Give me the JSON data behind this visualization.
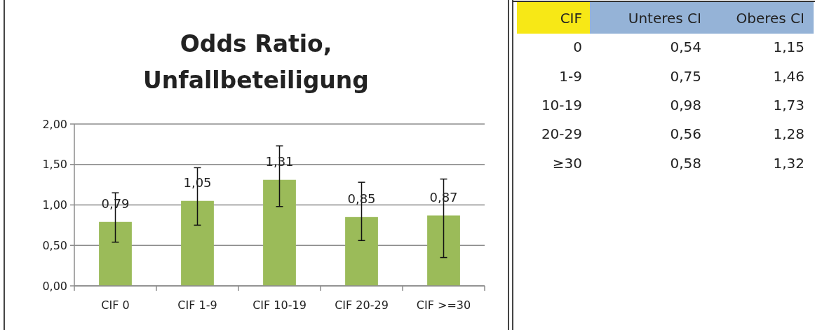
{
  "chart_data": [
    {
      "type": "bar",
      "title": "Odds Ratio,\nUnfallbeteiligung",
      "categories": [
        "CIF 0",
        "CIF 1-9",
        "CIF 10-19",
        "CIF 20-29",
        "CIF >=30"
      ],
      "values": [
        0.79,
        1.05,
        1.31,
        0.85,
        0.87
      ],
      "color": "#9bbb59",
      "errors": [
        [
          0.54,
          1.15
        ],
        [
          0.75,
          1.46
        ],
        [
          0.98,
          1.73
        ],
        [
          0.56,
          1.28
        ],
        [
          0.35,
          1.32
        ]
      ],
      "value_labels": [
        "0,79",
        "1,05",
        "1,31",
        "0,85",
        "0,87"
      ],
      "ylim": [
        0,
        2
      ],
      "yticks": [
        {
          "value": 0,
          "label": "0,00"
        },
        {
          "value": 0.5,
          "label": "0,50"
        },
        {
          "value": 1,
          "label": "1,00"
        },
        {
          "value": 1.5,
          "label": "1,50"
        },
        {
          "value": 2,
          "label": "2,00"
        }
      ],
      "grid": "y"
    },
    {
      "type": "other",
      "annotations": [
        "CIF",
        "Unteres CI",
        "Oberes CI",
        "0",
        "0,54",
        "1,15",
        "1-9",
        "0,75",
        "1,46",
        "10-19",
        "0,98",
        "1,73",
        "20-29",
        "0,56",
        "1,28",
        "≥30",
        "0,58",
        "1,32"
      ]
    }
  ]
}
